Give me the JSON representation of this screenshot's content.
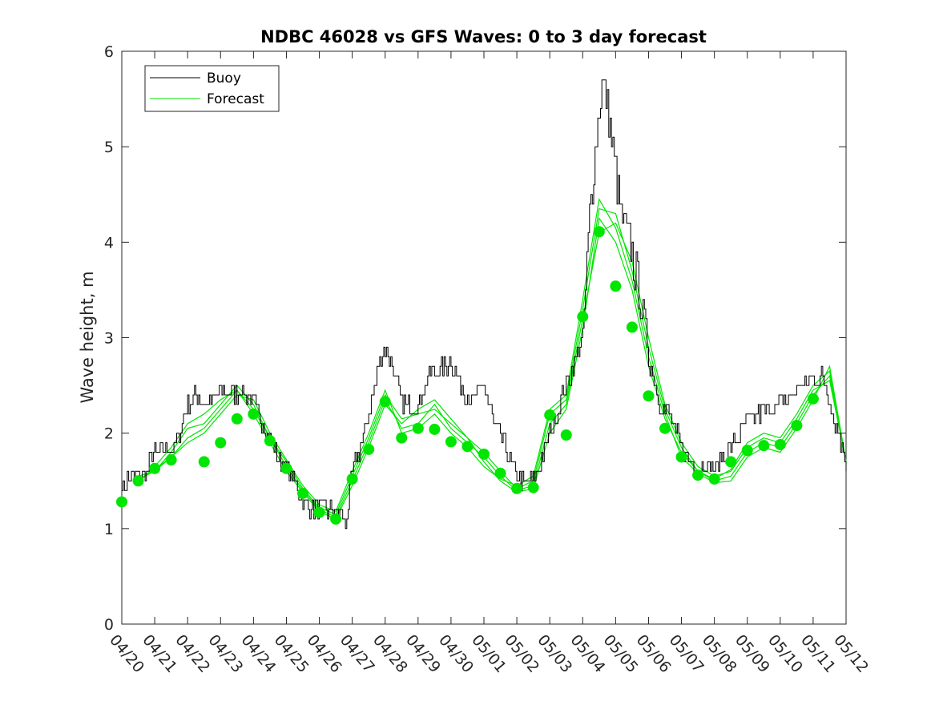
{
  "chart_data": {
    "type": "line",
    "title": "NDBC 46028 vs GFS Waves: 0 to 3 day forecast",
    "xlabel": "",
    "ylabel": "Wave height, m",
    "ylim": [
      0,
      6
    ],
    "yticks": [
      0,
      1,
      2,
      3,
      4,
      5,
      6
    ],
    "xlim": [
      0,
      22
    ],
    "xtick_labels": [
      "04/20",
      "04/21",
      "04/22",
      "04/23",
      "04/24",
      "04/25",
      "04/26",
      "04/27",
      "04/28",
      "04/29",
      "04/30",
      "05/01",
      "05/02",
      "05/03",
      "05/04",
      "05/05",
      "05/06",
      "05/07",
      "05/08",
      "05/09",
      "05/10",
      "05/11",
      "05/12"
    ],
    "grid": false,
    "legend_position": "top-left",
    "colors": {
      "buoy": "#000000",
      "forecast": "#00e600",
      "axis": "#262626"
    },
    "legend": [
      "Buoy",
      "Forecast"
    ],
    "buoy_trend": {
      "x": [
        0,
        0.3,
        0.6,
        1,
        1.3,
        1.6,
        2,
        2.3,
        2.6,
        3,
        3.3,
        3.6,
        4,
        4.3,
        4.6,
        5,
        5.3,
        5.6,
        6,
        6.3,
        6.6,
        6.8,
        7,
        7.2,
        7.5,
        7.8,
        8,
        8.2,
        8.5,
        8.8,
        9,
        9.3,
        9.6,
        10,
        10.3,
        10.6,
        11,
        11.3,
        11.6,
        12,
        12.3,
        12.6,
        13,
        13.3,
        13.6,
        14,
        14.2,
        14.4,
        14.6,
        14.8,
        15,
        15.2,
        15.5,
        15.8,
        16,
        16.3,
        16.6,
        17,
        17.3,
        17.6,
        18,
        18.3,
        18.6,
        19,
        19.3,
        19.6,
        20,
        20.3,
        20.6,
        21,
        21.3,
        21.6,
        22
      ],
      "y": [
        1.45,
        1.55,
        1.5,
        1.8,
        1.85,
        1.85,
        2.3,
        2.4,
        2.3,
        2.45,
        2.4,
        2.45,
        2.3,
        2.1,
        1.85,
        1.6,
        1.45,
        1.25,
        1.2,
        1.2,
        1.15,
        1.05,
        1.6,
        1.8,
        2.2,
        2.7,
        2.9,
        2.7,
        2.35,
        2.25,
        2.3,
        2.6,
        2.65,
        2.75,
        2.5,
        2.35,
        2.5,
        2.1,
        1.9,
        1.55,
        1.45,
        1.6,
        2.0,
        2.3,
        2.6,
        3.0,
        4.2,
        5.1,
        5.7,
        5.3,
        4.7,
        4.2,
        3.9,
        3.3,
        2.8,
        2.35,
        2.2,
        1.85,
        1.7,
        1.65,
        1.65,
        1.75,
        1.9,
        2.1,
        2.2,
        2.25,
        2.3,
        2.4,
        2.5,
        2.55,
        2.6,
        2.2,
        1.7
      ]
    },
    "buoy_noise_amplitude": 0.1,
    "forecast_runs": [
      {
        "x": [
          0.5,
          1,
          1.5,
          2,
          2.5,
          3,
          3.5,
          4,
          4.5,
          5,
          5.5,
          6,
          6.5,
          7,
          7.5,
          8,
          8.5,
          9,
          9.5,
          10,
          10.5,
          11,
          11.5,
          12,
          12.5,
          13,
          13.5,
          14,
          14.5,
          15,
          15.5,
          16,
          16.5,
          17,
          17.5,
          18,
          18.5,
          19,
          19.5,
          20,
          20.5,
          21,
          21.5,
          22
        ],
        "y": [
          1.5,
          1.62,
          1.75,
          1.95,
          2.05,
          2.25,
          2.45,
          2.25,
          1.95,
          1.65,
          1.4,
          1.2,
          1.12,
          1.5,
          1.9,
          2.35,
          2.05,
          2.1,
          2.3,
          2.05,
          1.9,
          1.75,
          1.55,
          1.4,
          1.45,
          2.1,
          2.3,
          3.2,
          4.1,
          4.2,
          3.8,
          3.0,
          2.3,
          1.9,
          1.65,
          1.55,
          1.6,
          1.85,
          1.95,
          1.9,
          2.15,
          2.45,
          2.55,
          1.7
        ]
      },
      {
        "x": [
          0.5,
          1,
          1.5,
          2,
          2.5,
          3,
          3.5,
          4,
          4.5,
          5,
          5.5,
          6,
          6.5,
          7,
          7.5,
          8,
          8.5,
          9,
          9.5,
          10,
          10.5,
          11,
          11.5,
          12,
          12.5,
          13,
          13.5,
          14,
          14.5,
          15,
          15.5,
          16,
          16.5,
          17,
          17.5,
          18,
          18.5,
          19,
          19.5,
          20,
          20.5,
          21,
          21.5,
          22
        ],
        "y": [
          1.52,
          1.6,
          1.8,
          2.05,
          2.1,
          2.3,
          2.5,
          2.3,
          1.95,
          1.7,
          1.42,
          1.22,
          1.15,
          1.55,
          1.95,
          2.4,
          2.15,
          2.2,
          2.25,
          2.1,
          1.95,
          1.8,
          1.6,
          1.42,
          1.5,
          2.2,
          2.35,
          3.3,
          4.35,
          4.3,
          3.7,
          2.9,
          2.25,
          1.85,
          1.6,
          1.5,
          1.55,
          1.8,
          1.9,
          1.85,
          2.1,
          2.4,
          2.6,
          1.7
        ]
      },
      {
        "x": [
          0.5,
          1,
          1.5,
          2,
          2.5,
          3,
          3.5,
          4,
          4.5,
          5,
          5.5,
          6,
          6.5,
          7,
          7.5,
          8,
          8.5,
          9,
          9.5,
          10,
          10.5,
          11,
          11.5,
          12,
          12.5,
          13,
          13.5,
          14,
          14.5,
          15,
          15.5,
          16,
          16.5,
          17,
          17.5,
          18,
          18.5,
          19,
          19.5,
          20,
          20.5,
          21,
          21.5,
          22
        ],
        "y": [
          1.48,
          1.65,
          1.85,
          2.1,
          2.2,
          2.35,
          2.45,
          2.2,
          1.9,
          1.6,
          1.38,
          1.18,
          1.1,
          1.45,
          1.85,
          2.3,
          2.1,
          2.25,
          2.35,
          2.15,
          1.95,
          1.7,
          1.5,
          1.38,
          1.42,
          2.0,
          2.25,
          3.1,
          4.25,
          4.0,
          3.5,
          2.7,
          2.15,
          1.8,
          1.6,
          1.52,
          1.62,
          1.9,
          2.0,
          1.95,
          2.2,
          2.5,
          2.65,
          1.7
        ]
      },
      {
        "x": [
          0.5,
          1,
          1.5,
          2,
          2.5,
          3,
          3.5,
          4,
          4.5,
          5,
          5.5,
          6,
          6.5,
          7,
          7.5,
          8,
          8.5,
          9,
          9.5,
          10,
          10.5,
          11,
          11.5,
          12,
          12.5,
          13,
          13.5,
          14,
          14.5,
          15,
          15.5,
          16,
          16.5,
          17,
          17.5,
          18,
          18.5,
          19,
          19.5,
          20,
          20.5,
          21,
          21.5,
          22
        ],
        "y": [
          1.55,
          1.6,
          1.75,
          1.9,
          2.0,
          2.2,
          2.4,
          2.35,
          2.0,
          1.72,
          1.45,
          1.25,
          1.18,
          1.6,
          2.0,
          2.45,
          2.0,
          2.05,
          2.2,
          2.0,
          1.85,
          1.65,
          1.52,
          1.45,
          1.55,
          2.25,
          2.4,
          3.4,
          4.45,
          4.15,
          3.6,
          2.8,
          2.2,
          1.75,
          1.58,
          1.48,
          1.5,
          1.75,
          1.85,
          1.8,
          2.05,
          2.35,
          2.7,
          1.7
        ]
      }
    ],
    "analysis_points": {
      "x": [
        0,
        0.5,
        1,
        1.5,
        2.5,
        3,
        3.5,
        4,
        4.5,
        5,
        5.5,
        6,
        6.5,
        7,
        7.5,
        8,
        8.5,
        9,
        9.5,
        10,
        10.5,
        11,
        11.5,
        12,
        12.5,
        13,
        13.5,
        14,
        14.5,
        15,
        15.5,
        16,
        16.5,
        17,
        17.5,
        18,
        18.5,
        19,
        19.5,
        20,
        20.5,
        21
      ],
      "y": [
        1.28,
        1.5,
        1.63,
        1.72,
        1.7,
        1.9,
        2.15,
        2.2,
        1.92,
        1.63,
        1.37,
        1.17,
        1.1,
        1.52,
        1.83,
        2.33,
        1.95,
        2.05,
        2.04,
        1.91,
        1.86,
        1.78,
        1.58,
        1.42,
        1.43,
        2.19,
        1.98,
        3.22,
        4.11,
        3.54,
        3.11,
        2.39,
        2.05,
        1.75,
        1.56,
        1.52,
        1.7,
        1.82,
        1.87,
        1.88,
        2.08,
        2.36
      ]
    }
  }
}
